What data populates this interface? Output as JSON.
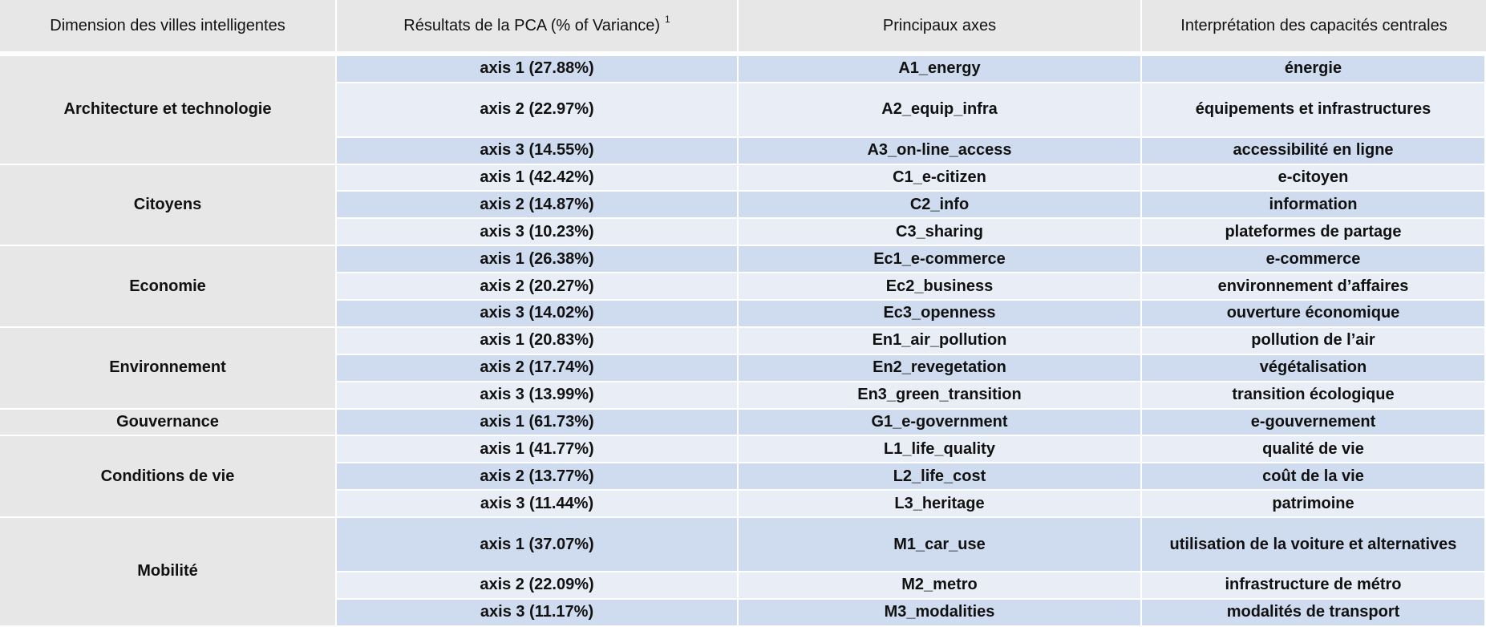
{
  "header": {
    "col1": "Dimension des villes intelligentes",
    "col2": "Résultats de la PCA (% of Variance)",
    "col2_sup": "1",
    "col3": "Principaux  axes",
    "col4": "Interprétation des capacités centrales"
  },
  "groups": [
    {
      "dimension": "Architecture et technologie",
      "rows": [
        {
          "axis": "axis 1 (27.88%)",
          "code": "A1_energy",
          "interp": "énergie",
          "size": 1
        },
        {
          "axis": "axis 2 (22.97%)",
          "code": "A2_equip_infra",
          "interp": "équipements et infrastructures",
          "size": 2
        },
        {
          "axis": "axis 3 (14.55%)",
          "code": "A3_on-line_access",
          "interp": "accessibilité en ligne",
          "size": 1
        }
      ]
    },
    {
      "dimension": "Citoyens",
      "rows": [
        {
          "axis": "axis 1 (42.42%)",
          "code": "C1_e-citizen",
          "interp": "e-citoyen",
          "size": 1
        },
        {
          "axis": "axis 2 (14.87%)",
          "code": "C2_info",
          "interp": "information",
          "size": 1
        },
        {
          "axis": "axis 3 (10.23%)",
          "code": "C3_sharing",
          "interp": "plateformes de partage",
          "size": 1
        }
      ]
    },
    {
      "dimension": "Economie",
      "rows": [
        {
          "axis": "axis 1 (26.38%)",
          "code": "Ec1_e-commerce",
          "interp": "e-commerce",
          "size": 1
        },
        {
          "axis": "axis 2 (20.27%)",
          "code": "Ec2_business",
          "interp": "environnement d’affaires",
          "size": 1
        },
        {
          "axis": "axis 3 (14.02%)",
          "code": "Ec3_openness",
          "interp": "ouverture économique",
          "size": 1
        }
      ]
    },
    {
      "dimension": "Environnement",
      "rows": [
        {
          "axis": "axis 1 (20.83%)",
          "code": "En1_air_pollution",
          "interp": "pollution  de l’air",
          "size": 1
        },
        {
          "axis": "axis 2 (17.74%)",
          "code": "En2_revegetation",
          "interp": "végétalisation",
          "size": 1
        },
        {
          "axis": "axis 3 (13.99%)",
          "code": "En3_green_transition",
          "interp": "transition écologique",
          "size": 1
        }
      ]
    },
    {
      "dimension": "Gouvernance",
      "rows": [
        {
          "axis": "axis 1 (61.73%)",
          "code": "G1_e-government",
          "interp": "e-gouvernement",
          "size": 1
        }
      ]
    },
    {
      "dimension": "Conditions  de vie",
      "rows": [
        {
          "axis": "axis 1 (41.77%)",
          "code": "L1_life_quality",
          "interp": "qualité de vie",
          "size": 1
        },
        {
          "axis": "axis 2 (13.77%)",
          "code": "L2_life_cost",
          "interp": "coût de la vie",
          "size": 1
        },
        {
          "axis": "axis 3 (11.44%)",
          "code": "L3_heritage",
          "interp": "patrimoine",
          "size": 1
        }
      ]
    },
    {
      "dimension": "Mobilité",
      "rows": [
        {
          "axis": "axis 1 (37.07%)",
          "code": "M1_car_use",
          "interp": "utilisation de la voiture et alternatives",
          "size": 2
        },
        {
          "axis": "axis 2 (22.09%)",
          "code": "M2_metro",
          "interp": "infrastructure de métro",
          "size": 1
        },
        {
          "axis": "axis 3 (11.17%)",
          "code": "M3_modalities",
          "interp": "modalités de transport",
          "size": 1
        }
      ]
    }
  ]
}
